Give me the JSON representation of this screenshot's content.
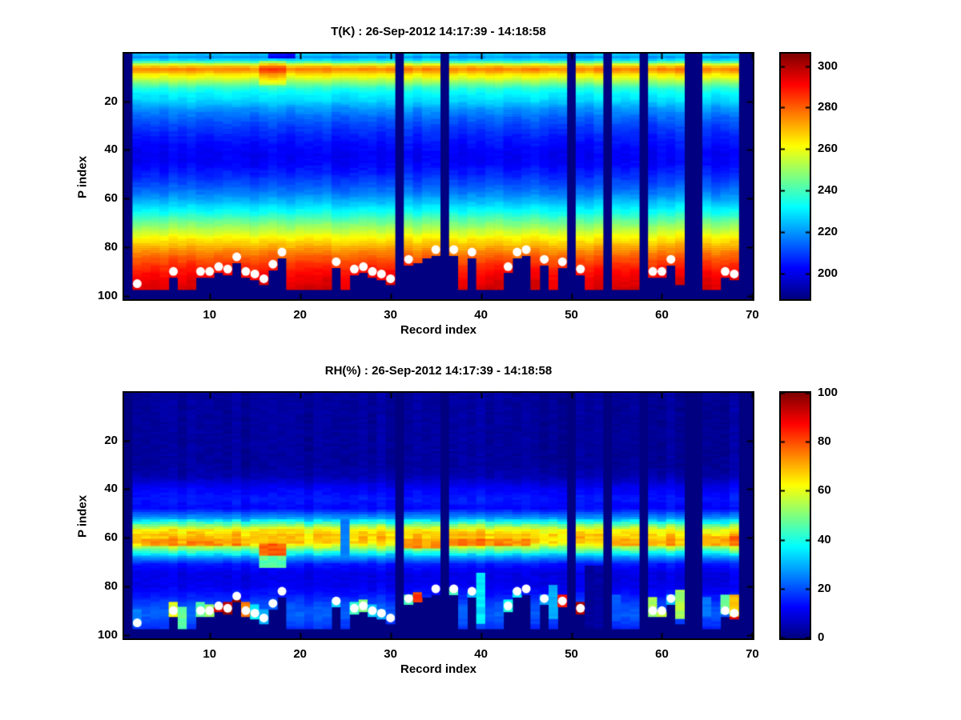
{
  "figure": {
    "background": "#ffffff",
    "marker_color": "#ffffff",
    "axis_color": "#000000"
  },
  "axes_text": {
    "xlabel": "Record index",
    "ylabel": "P index"
  },
  "chart_data": [
    {
      "type": "heatmap",
      "id": "T",
      "title": "T(K) : 26-Sep-2012 14:17:39 - 14:18:58",
      "xlabel": "Record index",
      "ylabel": "P index",
      "x_ticks": [
        10,
        20,
        30,
        40,
        50,
        60,
        70
      ],
      "y_ticks": [
        20,
        40,
        60,
        80,
        100
      ],
      "x_range": [
        1,
        70
      ],
      "y_range": [
        1,
        100
      ],
      "y_axis_direction": "reversed",
      "colormap": "jet",
      "clim": [
        188,
        306
      ],
      "colorbar_ticks": [
        200,
        220,
        240,
        260,
        280,
        300
      ],
      "values_are": "Temperature (K) vs record index (x) and pressure index P (y); navy = no data",
      "vertical_profile": [
        [
          1,
          225
        ],
        [
          2,
          221
        ],
        [
          3,
          228
        ],
        [
          4,
          242
        ],
        [
          5,
          258
        ],
        [
          6,
          270
        ],
        [
          7,
          276
        ],
        [
          8,
          272
        ],
        [
          9,
          265
        ],
        [
          10,
          261
        ],
        [
          11,
          256
        ],
        [
          12,
          251
        ],
        [
          13,
          246
        ],
        [
          14,
          241
        ],
        [
          15,
          237
        ],
        [
          17,
          232
        ],
        [
          20,
          228
        ],
        [
          23,
          221
        ],
        [
          26,
          216
        ],
        [
          30,
          211
        ],
        [
          34,
          207
        ],
        [
          38,
          204
        ],
        [
          42,
          202
        ],
        [
          46,
          203
        ],
        [
          50,
          207
        ],
        [
          54,
          212
        ],
        [
          58,
          218
        ],
        [
          62,
          226
        ],
        [
          66,
          235
        ],
        [
          70,
          246
        ],
        [
          73,
          254
        ],
        [
          76,
          262
        ],
        [
          79,
          269
        ],
        [
          82,
          276
        ],
        [
          85,
          282
        ],
        [
          88,
          287
        ],
        [
          91,
          291
        ],
        [
          94,
          294
        ],
        [
          97,
          296
        ],
        [
          100,
          298
        ]
      ],
      "column_anomalies": [
        {
          "records": [
            16,
            18
          ],
          "p": [
            4,
            13
          ],
          "delta": 9
        },
        {
          "records": [
            17,
            19
          ],
          "p": [
            1,
            2
          ],
          "delta": -20
        }
      ],
      "missing_records": [
        1,
        31,
        36,
        50,
        54,
        58,
        63,
        64,
        69,
        70
      ],
      "surface_p_by_record": {
        "default": 97,
        "overrides": {
          "6": 92,
          "9": 92,
          "10": 92,
          "11": 90,
          "12": 91,
          "13": 86,
          "14": 92,
          "15": 93,
          "16": 95,
          "17": 89,
          "18": 84,
          "24": 88,
          "26": 91,
          "27": 90,
          "28": 92,
          "29": 93,
          "30": 95,
          "32": 87,
          "33": 86,
          "34": 84,
          "35": 83,
          "37": 83,
          "39": 84,
          "43": 90,
          "44": 84,
          "45": 83,
          "47": 87,
          "49": 88,
          "51": 91,
          "59": 92,
          "60": 92,
          "61": 87,
          "62": 95,
          "67": 92,
          "68": 93
        }
      },
      "surface_markers": [
        [
          2,
          95
        ],
        [
          6,
          90
        ],
        [
          9,
          90
        ],
        [
          10,
          90
        ],
        [
          11,
          88
        ],
        [
          12,
          89
        ],
        [
          13,
          84
        ],
        [
          14,
          90
        ],
        [
          15,
          91
        ],
        [
          16,
          93
        ],
        [
          17,
          87
        ],
        [
          18,
          82
        ],
        [
          24,
          86
        ],
        [
          26,
          89
        ],
        [
          27,
          88
        ],
        [
          28,
          90
        ],
        [
          29,
          91
        ],
        [
          30,
          93
        ],
        [
          32,
          85
        ],
        [
          35,
          81
        ],
        [
          37,
          81
        ],
        [
          39,
          82
        ],
        [
          43,
          88
        ],
        [
          44,
          82
        ],
        [
          45,
          81
        ],
        [
          47,
          85
        ],
        [
          49,
          86
        ],
        [
          51,
          89
        ],
        [
          59,
          90
        ],
        [
          60,
          90
        ],
        [
          61,
          85
        ],
        [
          67,
          90
        ],
        [
          68,
          91
        ]
      ],
      "surface_patches": []
    },
    {
      "type": "heatmap",
      "id": "RH",
      "title": "RH(%) : 26-Sep-2012 14:17:39 - 14:18:58",
      "xlabel": "Record index",
      "ylabel": "P index",
      "x_ticks": [
        10,
        20,
        30,
        40,
        50,
        60,
        70
      ],
      "y_ticks": [
        20,
        40,
        60,
        80,
        100
      ],
      "x_range": [
        1,
        70
      ],
      "y_range": [
        1,
        100
      ],
      "y_axis_direction": "reversed",
      "colormap": "jet",
      "clim": [
        0,
        100
      ],
      "colorbar_ticks": [
        0,
        20,
        40,
        60,
        80,
        100
      ],
      "values_are": "Relative humidity (%) vs record index (x) and pressure index P (y); navy = no data / 0",
      "vertical_profile": [
        [
          1,
          3
        ],
        [
          30,
          3
        ],
        [
          35,
          5
        ],
        [
          40,
          12
        ],
        [
          44,
          15
        ],
        [
          48,
          13
        ],
        [
          52,
          28
        ],
        [
          55,
          50
        ],
        [
          57,
          63
        ],
        [
          59,
          68
        ],
        [
          62,
          67
        ],
        [
          64,
          55
        ],
        [
          66,
          42
        ],
        [
          68,
          28
        ],
        [
          71,
          15
        ],
        [
          75,
          10
        ],
        [
          80,
          11
        ],
        [
          84,
          15
        ],
        [
          88,
          20
        ],
        [
          92,
          22
        ],
        [
          96,
          18
        ],
        [
          100,
          14
        ]
      ],
      "column_anomalies": [],
      "missing_records": [
        1,
        31,
        36,
        50,
        54,
        58,
        63,
        64,
        69,
        70
      ],
      "surface_p_by_record": {
        "default": 97,
        "overrides": {
          "6": 92,
          "9": 92,
          "10": 92,
          "11": 90,
          "12": 91,
          "13": 86,
          "14": 92,
          "15": 93,
          "16": 95,
          "17": 89,
          "18": 84,
          "24": 88,
          "26": 91,
          "27": 90,
          "28": 92,
          "29": 93,
          "30": 95,
          "32": 87,
          "33": 86,
          "34": 84,
          "35": 83,
          "37": 83,
          "39": 84,
          "43": 90,
          "44": 84,
          "45": 83,
          "47": 87,
          "49": 88,
          "51": 91,
          "59": 92,
          "60": 92,
          "61": 87,
          "62": 95,
          "67": 92,
          "68": 93
        }
      },
      "surface_markers": [
        [
          2,
          95
        ],
        [
          6,
          90
        ],
        [
          9,
          90
        ],
        [
          10,
          90
        ],
        [
          11,
          88
        ],
        [
          12,
          89
        ],
        [
          13,
          84
        ],
        [
          14,
          90
        ],
        [
          15,
          91
        ],
        [
          16,
          93
        ],
        [
          17,
          87
        ],
        [
          18,
          82
        ],
        [
          24,
          86
        ],
        [
          26,
          89
        ],
        [
          27,
          88
        ],
        [
          28,
          90
        ],
        [
          29,
          91
        ],
        [
          30,
          93
        ],
        [
          32,
          85
        ],
        [
          35,
          81
        ],
        [
          37,
          81
        ],
        [
          39,
          82
        ],
        [
          43,
          88
        ],
        [
          44,
          82
        ],
        [
          45,
          81
        ],
        [
          47,
          85
        ],
        [
          49,
          86
        ],
        [
          51,
          89
        ],
        [
          59,
          90
        ],
        [
          60,
          90
        ],
        [
          61,
          85
        ],
        [
          67,
          90
        ],
        [
          68,
          91
        ]
      ],
      "surface_patches": [
        {
          "records": [
            3,
            14
          ],
          "p": [
            61,
            63
          ],
          "value": 73
        },
        {
          "records": [
            16,
            18
          ],
          "p": [
            63,
            67
          ],
          "value": 78
        },
        {
          "records": [
            16,
            18
          ],
          "p": [
            68,
            72
          ],
          "value": 45
        },
        {
          "records": [
            25,
            25
          ],
          "p": [
            53,
            68
          ],
          "value": 25
        },
        {
          "records": [
            32,
            35
          ],
          "p": [
            61,
            64
          ],
          "value": 72
        },
        {
          "records": [
            37,
            45
          ],
          "p": [
            61,
            63
          ],
          "value": 74
        },
        {
          "records": [
            55,
            62
          ],
          "p": [
            61,
            63
          ],
          "value": 72
        },
        {
          "records": [
            65,
            68
          ],
          "p": [
            60,
            63
          ],
          "value": 74
        },
        {
          "records": [
            2,
            2
          ],
          "p": [
            90,
            96
          ],
          "value": 25
        },
        {
          "records": [
            6,
            6
          ],
          "p": [
            87,
            96
          ],
          "value": 58
        },
        {
          "records": [
            7,
            7
          ],
          "p": [
            89,
            97
          ],
          "value": 50
        },
        {
          "records": [
            9,
            9
          ],
          "p": [
            87,
            92
          ],
          "value": 45
        },
        {
          "records": [
            10,
            10
          ],
          "p": [
            88,
            92
          ],
          "value": 50
        },
        {
          "records": [
            11,
            11
          ],
          "p": [
            89,
            97
          ],
          "value": 90
        },
        {
          "records": [
            12,
            12
          ],
          "p": [
            87,
            97
          ],
          "value": 98
        },
        {
          "records": [
            13,
            13
          ],
          "p": [
            86,
            97
          ],
          "value": 96
        },
        {
          "records": [
            14,
            14
          ],
          "p": [
            87,
            93
          ],
          "value": 80
        },
        {
          "records": [
            15,
            15
          ],
          "p": [
            88,
            93
          ],
          "value": 35
        },
        {
          "records": [
            16,
            16
          ],
          "p": [
            90,
            95
          ],
          "value": 30
        },
        {
          "records": [
            24,
            24
          ],
          "p": [
            86,
            92
          ],
          "value": 35
        },
        {
          "records": [
            26,
            26
          ],
          "p": [
            87,
            91
          ],
          "value": 42
        },
        {
          "records": [
            27,
            27
          ],
          "p": [
            86,
            90
          ],
          "value": 48
        },
        {
          "records": [
            28,
            28
          ],
          "p": [
            88,
            92
          ],
          "value": 35
        },
        {
          "records": [
            29,
            29
          ],
          "p": [
            90,
            93
          ],
          "value": 28
        },
        {
          "records": [
            32,
            32
          ],
          "p": [
            84,
            88
          ],
          "value": 45
        },
        {
          "records": [
            33,
            33
          ],
          "p": [
            83,
            89
          ],
          "value": 80
        },
        {
          "records": [
            37,
            37
          ],
          "p": [
            81,
            90
          ],
          "value": 45
        },
        {
          "records": [
            39,
            39
          ],
          "p": [
            83,
            90
          ],
          "value": 30
        },
        {
          "records": [
            40,
            40
          ],
          "p": [
            75,
            95
          ],
          "value": 32
        },
        {
          "records": [
            43,
            43
          ],
          "p": [
            86,
            90
          ],
          "value": 40
        },
        {
          "records": [
            44,
            44
          ],
          "p": [
            82,
            90
          ],
          "value": 35
        },
        {
          "records": [
            47,
            47
          ],
          "p": [
            84,
            90
          ],
          "value": 30
        },
        {
          "records": [
            48,
            48
          ],
          "p": [
            80,
            93
          ],
          "value": 30
        },
        {
          "records": [
            49,
            49
          ],
          "p": [
            84,
            97
          ],
          "value": 90
        },
        {
          "records": [
            51,
            51
          ],
          "p": [
            87,
            97
          ],
          "value": 95
        },
        {
          "records": [
            52,
            53
          ],
          "p": [
            72,
            97
          ],
          "value": 3
        },
        {
          "records": [
            55,
            55
          ],
          "p": [
            84,
            94
          ],
          "value": 22
        },
        {
          "records": [
            59,
            59
          ],
          "p": [
            85,
            95
          ],
          "value": 55
        },
        {
          "records": [
            60,
            60
          ],
          "p": [
            91,
            96
          ],
          "value": 60
        },
        {
          "records": [
            61,
            61
          ],
          "p": [
            84,
            88
          ],
          "value": 30
        },
        {
          "records": [
            62,
            62
          ],
          "p": [
            82,
            93
          ],
          "value": 58
        },
        {
          "records": [
            65,
            65
          ],
          "p": [
            85,
            92
          ],
          "value": 25
        },
        {
          "records": [
            67,
            67
          ],
          "p": [
            84,
            91
          ],
          "value": 50
        },
        {
          "records": [
            68,
            68
          ],
          "p": [
            84,
            92
          ],
          "value": 65
        },
        {
          "records": [
            68,
            68
          ],
          "p": [
            93,
            97
          ],
          "value": 85
        }
      ]
    }
  ]
}
